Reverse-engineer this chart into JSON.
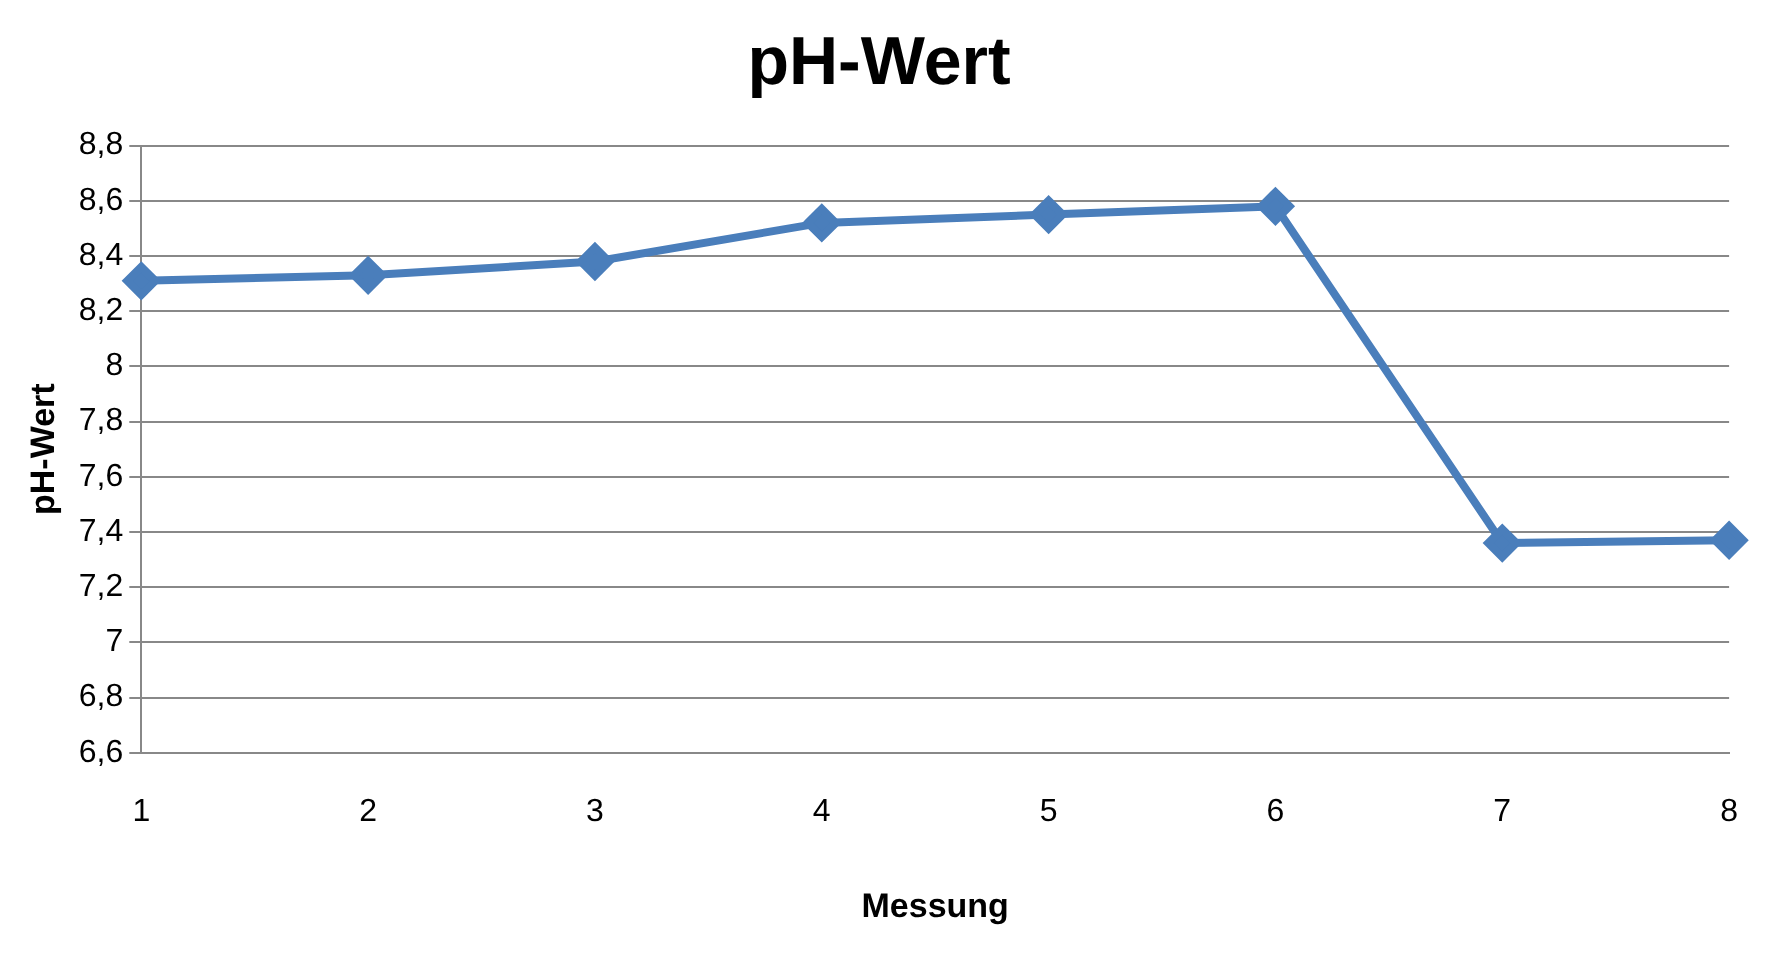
{
  "chart_data": {
    "type": "line",
    "title": "pH-Wert",
    "xlabel": "Messung",
    "ylabel": "pH-Wert",
    "categories": [
      "1",
      "2",
      "3",
      "4",
      "5",
      "6",
      "7",
      "8"
    ],
    "series": [
      {
        "color": "#4a7ebb",
        "values": [
          8.31,
          8.33,
          8.38,
          8.52,
          8.55,
          8.58,
          7.36,
          7.37
        ]
      }
    ],
    "ylim": [
      6.6,
      8.8
    ],
    "yticks": [
      {
        "value": 6.6,
        "label": "6,6"
      },
      {
        "value": 6.8,
        "label": "6,8"
      },
      7,
      {
        "value": 7.2,
        "label": "7,2"
      },
      {
        "value": 7.4,
        "label": "7,4"
      },
      {
        "value": 7.6,
        "label": "7,6"
      },
      {
        "value": 7.8,
        "label": "7,8"
      },
      8,
      {
        "value": 8.2,
        "label": "8,2"
      },
      {
        "value": 8.4,
        "label": "8,4"
      },
      {
        "value": 8.6,
        "label": "8,6"
      },
      {
        "value": 8.8,
        "label": "8,8"
      }
    ],
    "grid": "y",
    "marker": "diamond",
    "line_style": "solid"
  }
}
